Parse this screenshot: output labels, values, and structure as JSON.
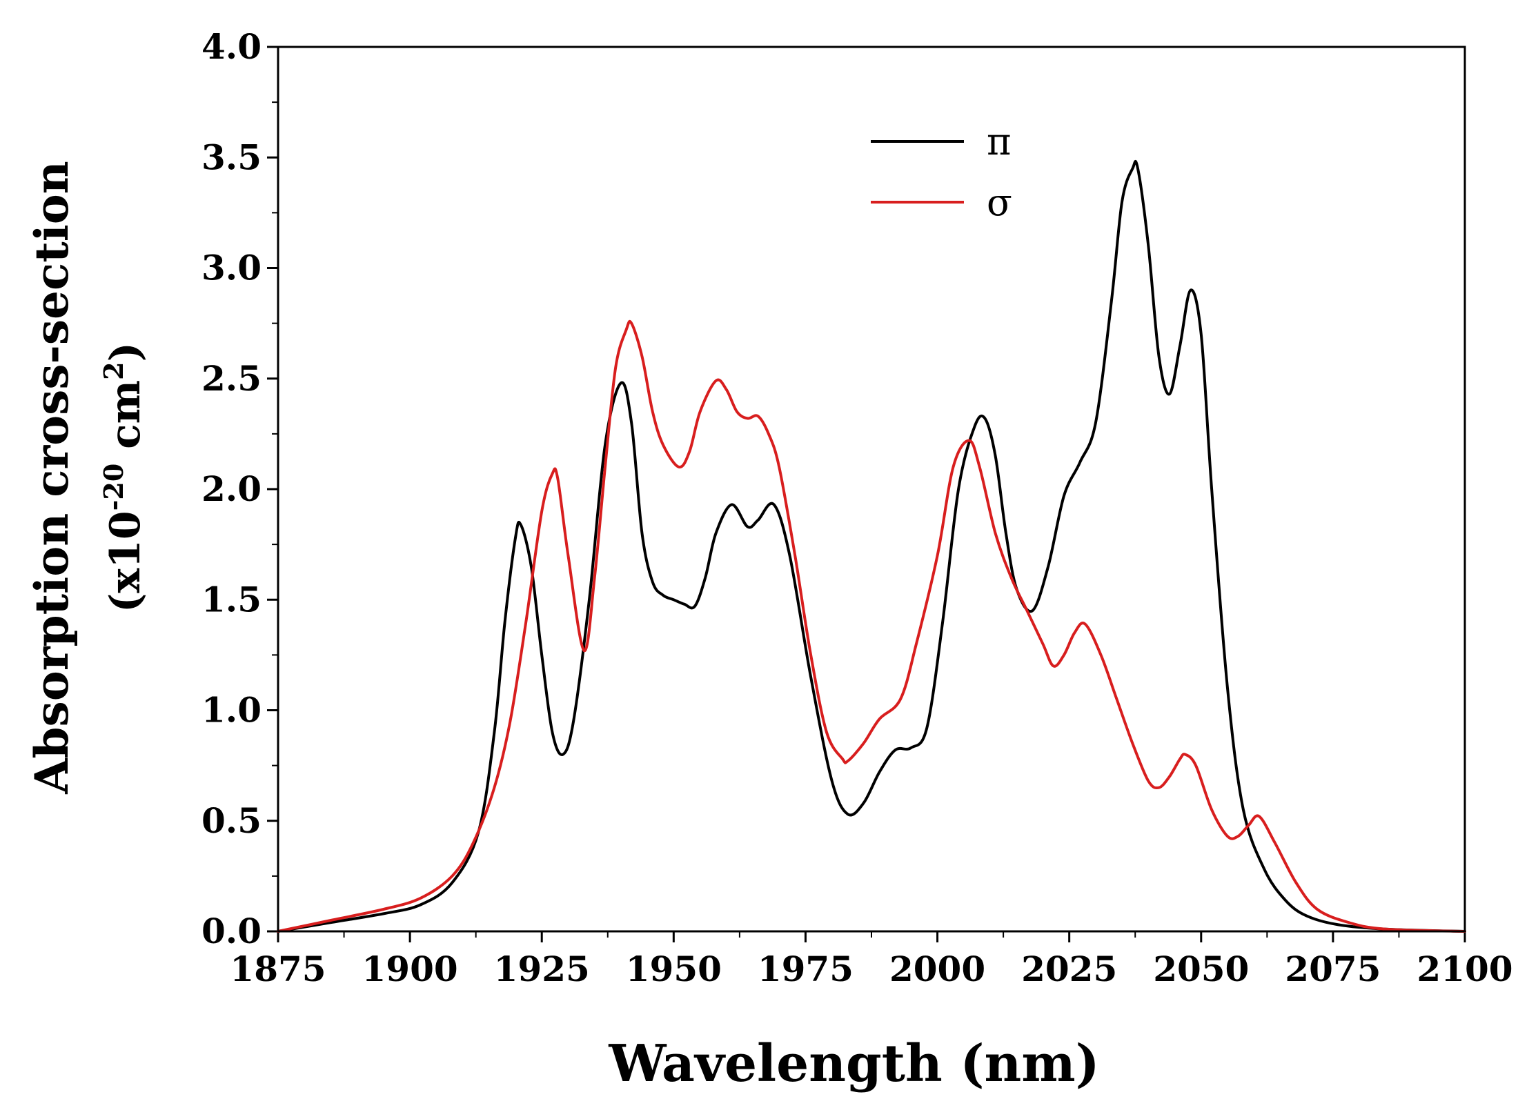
{
  "chart_data": {
    "type": "line",
    "title": "",
    "xlabel": "Wavelength (nm)",
    "ylabel_line1": "Absorption cross-section",
    "ylabel_line2_prefix": "(x10",
    "ylabel_line2_exp": "-20",
    "ylabel_line2_unit": " cm",
    "ylabel_line2_unit_exp": "2",
    "ylabel_line2_suffix": ")",
    "xlim": [
      1875,
      2100
    ],
    "ylim": [
      0.0,
      4.0
    ],
    "x_ticks": [
      1875,
      1900,
      1925,
      1950,
      1975,
      2000,
      2025,
      2050,
      2075,
      2100
    ],
    "x_tick_labels": [
      "1875",
      "1900",
      "1925",
      "1950",
      "1975",
      "2000",
      "2025",
      "2050",
      "2075",
      "2100"
    ],
    "y_ticks": [
      0.0,
      0.5,
      1.0,
      1.5,
      2.0,
      2.5,
      3.0,
      3.5,
      4.0
    ],
    "y_tick_labels": [
      "0.0",
      "0.5",
      "1.0",
      "1.5",
      "2.0",
      "2.5",
      "3.0",
      "3.5",
      "4.0"
    ],
    "grid": false,
    "legend_position": "top-center",
    "series": [
      {
        "name": "π",
        "color": "#000000",
        "x": [
          1875,
          1885,
          1895,
          1902,
          1908,
          1913,
          1916,
          1918,
          1920,
          1921,
          1923,
          1925,
          1927,
          1929,
          1931,
          1934,
          1937,
          1940,
          1942,
          1944,
          1946,
          1948,
          1950,
          1952,
          1954,
          1956,
          1958,
          1961,
          1964,
          1966,
          1969,
          1972,
          1976,
          1980,
          1983,
          1986,
          1989,
          1992,
          1995,
          1998,
          2001,
          2004,
          2007,
          2009,
          2011,
          2013,
          2015,
          2018,
          2021,
          2024,
          2027,
          2030,
          2033,
          2035,
          2037,
          2038,
          2040,
          2042,
          2044,
          2046,
          2048,
          2050,
          2052,
          2055,
          2058,
          2062,
          2066,
          2070,
          2076,
          2085,
          2100
        ],
        "y": [
          0.0,
          0.04,
          0.08,
          0.12,
          0.22,
          0.45,
          0.9,
          1.4,
          1.78,
          1.84,
          1.65,
          1.25,
          0.9,
          0.8,
          0.95,
          1.5,
          2.2,
          2.48,
          2.3,
          1.8,
          1.58,
          1.52,
          1.5,
          1.48,
          1.47,
          1.6,
          1.8,
          1.93,
          1.83,
          1.86,
          1.93,
          1.7,
          1.15,
          0.68,
          0.53,
          0.58,
          0.72,
          0.82,
          0.83,
          0.92,
          1.4,
          2.0,
          2.28,
          2.32,
          2.15,
          1.8,
          1.55,
          1.45,
          1.65,
          1.97,
          2.12,
          2.3,
          2.85,
          3.3,
          3.45,
          3.45,
          3.1,
          2.6,
          2.43,
          2.65,
          2.9,
          2.7,
          2.0,
          1.1,
          0.55,
          0.28,
          0.14,
          0.07,
          0.03,
          0.01,
          0.0
        ]
      },
      {
        "name": "σ",
        "color": "#d81e1e",
        "x": [
          1875,
          1885,
          1895,
          1902,
          1908,
          1912,
          1916,
          1919,
          1922,
          1925,
          1927,
          1928,
          1930,
          1933,
          1935,
          1937,
          1939,
          1941,
          1942,
          1944,
          1946,
          1948,
          1951,
          1953,
          1955,
          1958,
          1960,
          1962,
          1964,
          1966,
          1968,
          1970,
          1973,
          1976,
          1979,
          1982,
          1983,
          1986,
          1989,
          1993,
          1996,
          2000,
          2003,
          2006,
          2008,
          2011,
          2014,
          2017,
          2020,
          2022,
          2024,
          2026,
          2028,
          2031,
          2034,
          2037,
          2040,
          2042,
          2044,
          2046,
          2047,
          2049,
          2052,
          2055,
          2057,
          2059,
          2061,
          2064,
          2068,
          2072,
          2078,
          2085,
          2100
        ],
        "y": [
          0.0,
          0.05,
          0.1,
          0.15,
          0.25,
          0.4,
          0.65,
          0.95,
          1.4,
          1.9,
          2.07,
          2.05,
          1.7,
          1.27,
          1.6,
          2.1,
          2.55,
          2.72,
          2.75,
          2.6,
          2.35,
          2.2,
          2.1,
          2.17,
          2.35,
          2.49,
          2.45,
          2.35,
          2.32,
          2.33,
          2.25,
          2.1,
          1.7,
          1.25,
          0.9,
          0.78,
          0.77,
          0.85,
          0.96,
          1.05,
          1.3,
          1.7,
          2.1,
          2.22,
          2.1,
          1.8,
          1.6,
          1.45,
          1.3,
          1.2,
          1.25,
          1.35,
          1.39,
          1.25,
          1.05,
          0.85,
          0.68,
          0.65,
          0.7,
          0.78,
          0.8,
          0.75,
          0.55,
          0.43,
          0.43,
          0.48,
          0.52,
          0.4,
          0.22,
          0.1,
          0.04,
          0.01,
          0.0
        ]
      }
    ]
  }
}
